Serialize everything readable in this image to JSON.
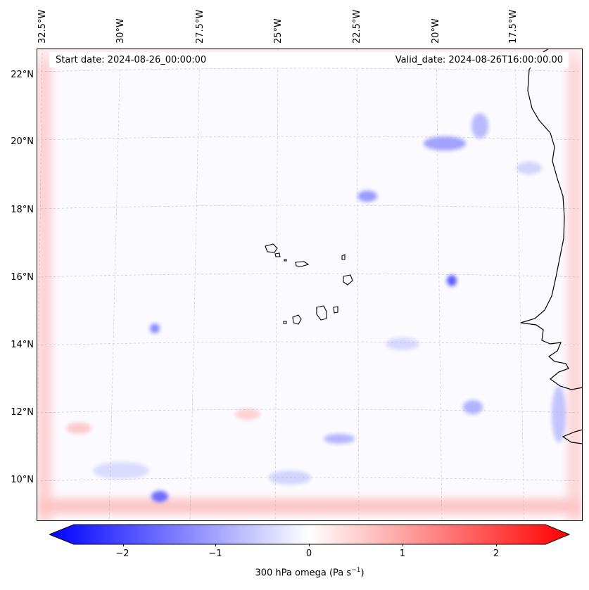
{
  "map": {
    "start_date_label": "Start date: 2024-08-26_00:00:00",
    "valid_date_label": "Valid_date: 2024-08-26T16:00:00.00",
    "longitude_ticks": [
      "32.5°W",
      "30°W",
      "27.5°W",
      "25°W",
      "22.5°W",
      "20°W",
      "17.5°W"
    ],
    "latitude_ticks": [
      "22°N",
      "20°N",
      "18°N",
      "16°N",
      "14°N",
      "12°N",
      "10°N"
    ],
    "colors": {
      "negative": "#0000ff",
      "neutral": "#ffffff",
      "positive": "#ff0000",
      "coastline": "#000000",
      "gridline": "#b0b0b0"
    }
  },
  "colorbar": {
    "label_main": "300 hPa omega (Pa s",
    "label_exp": "−1",
    "label_close": ")",
    "ticks": [
      "−2",
      "−1",
      "0",
      "1",
      "2"
    ],
    "min": -2.7,
    "max": 2.7
  }
}
